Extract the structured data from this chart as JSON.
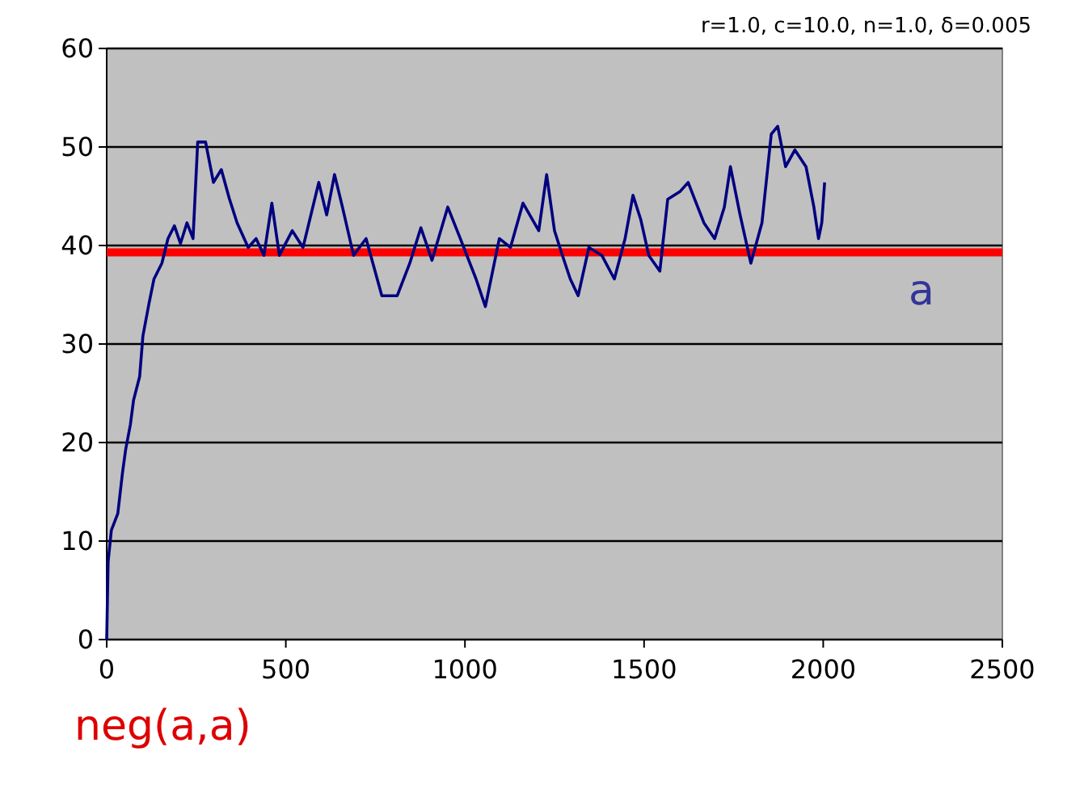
{
  "chart_data": {
    "type": "line",
    "subtitle": "r=1.0, c=10.0, n=1.0, δ=0.005",
    "x": [
      0,
      4,
      13,
      31,
      44,
      53,
      66,
      75,
      92,
      101,
      118,
      132,
      154,
      171,
      189,
      206,
      224,
      241,
      254,
      276,
      298,
      320,
      342,
      364,
      395,
      417,
      439,
      461,
      482,
      518,
      548,
      592,
      614,
      636,
      658,
      689,
      724,
      768,
      811,
      846,
      877,
      908,
      952,
      987,
      1031,
      1057,
      1096,
      1127,
      1162,
      1206,
      1228,
      1250,
      1272,
      1294,
      1316,
      1346,
      1382,
      1417,
      1447,
      1469,
      1491,
      1513,
      1544,
      1566,
      1601,
      1623,
      1667,
      1697,
      1724,
      1741,
      1768,
      1798,
      1829,
      1855,
      1873,
      1895,
      1921,
      1952,
      1974,
      1987,
      1996,
      2004
    ],
    "series": [
      {
        "color": "#000080",
        "values": [
          0,
          7.9,
          11.1,
          12.8,
          16.9,
          19.3,
          21.8,
          24.3,
          26.7,
          30.8,
          34.1,
          36.6,
          38.2,
          40.7,
          42,
          40.2,
          42.3,
          40.7,
          50.5,
          50.5,
          46.4,
          47.7,
          44.8,
          42.3,
          39.8,
          40.7,
          39,
          44.3,
          39,
          41.5,
          39.8,
          46.4,
          43.1,
          47.2,
          43.9,
          39,
          40.7,
          34.9,
          34.9,
          38.2,
          41.8,
          38.5,
          43.9,
          40.7,
          36.6,
          33.8,
          40.7,
          39.8,
          44.3,
          41.5,
          47.2,
          41.5,
          39,
          36.6,
          34.9,
          39.8,
          39,
          36.6,
          40.7,
          45.1,
          42.6,
          39,
          37.4,
          44.7,
          45.5,
          46.4,
          42.3,
          40.7,
          43.9,
          48,
          43.1,
          38.2,
          42.3,
          51.3,
          52.1,
          48,
          49.7,
          48,
          43.9,
          40.7,
          42.3,
          46.4
        ]
      }
    ],
    "xlim": [
      0,
      2500
    ],
    "xticks": [
      0,
      500,
      1000,
      1500,
      2000,
      2500
    ],
    "ylim": [
      0,
      60
    ],
    "yticks": [
      0,
      10,
      20,
      30,
      40,
      50,
      60
    ],
    "grid": "y",
    "marker": "none",
    "line_style": "solid",
    "ref_lines": [
      {
        "axis": "y",
        "value": 39.3,
        "label": "a",
        "color": "#ff0000"
      }
    ],
    "annotations": [
      "neg(a,a)"
    ]
  }
}
